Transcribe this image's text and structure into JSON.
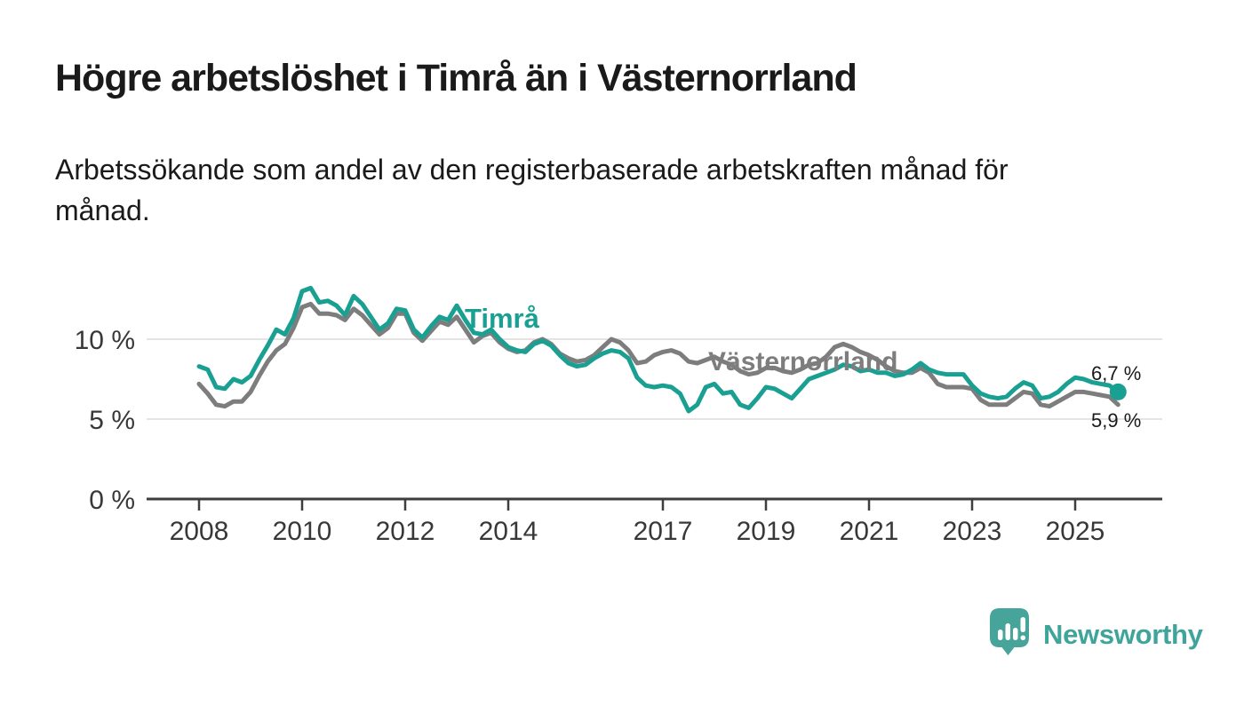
{
  "header": {
    "title": "Högre arbetslöshet i Timrå än i Västernorrland",
    "subtitle_line1": "Arbetssökande som andel av den registerbaserade arbetskraften månad för",
    "subtitle_line2": "månad."
  },
  "chart_data": {
    "type": "line",
    "title": "Högre arbetslöshet i Timrå än i Västernorrland",
    "xlabel": "",
    "ylabel": "",
    "grid": "horizontal",
    "legend_position": "inline-labels-on-lines",
    "x_range": [
      2008.0,
      2026.7
    ],
    "y_range": [
      0,
      14
    ],
    "y_gridlines": [
      5,
      10
    ],
    "y_ticks": [
      {
        "value": 0,
        "label": "0 %"
      },
      {
        "value": 5,
        "label": "5 %"
      },
      {
        "value": 10,
        "label": "10 %"
      }
    ],
    "x_ticks": [
      {
        "year": 2008,
        "label": "2008"
      },
      {
        "year": 2010,
        "label": "2010"
      },
      {
        "year": 2012,
        "label": "2012"
      },
      {
        "year": 2014,
        "label": "2014"
      },
      {
        "year": 2017,
        "label": "2017"
      },
      {
        "year": 2019,
        "label": "2019"
      },
      {
        "year": 2021,
        "label": "2021"
      },
      {
        "year": 2023,
        "label": "2023"
      },
      {
        "year": 2025,
        "label": "2025"
      }
    ],
    "series": [
      {
        "name": "Timrå",
        "color": "#1aa092",
        "end_label": "6,7 %",
        "end_value": 6.7,
        "end_marker": true,
        "start": 2008.0,
        "step_months": 2,
        "values": [
          8.3,
          8.1,
          7.0,
          6.9,
          7.5,
          7.3,
          7.7,
          8.7,
          9.6,
          10.6,
          10.3,
          11.3,
          13.0,
          13.2,
          12.3,
          12.4,
          12.1,
          11.5,
          12.7,
          12.2,
          11.4,
          10.6,
          11.0,
          11.9,
          11.8,
          10.6,
          10.1,
          10.8,
          11.4,
          11.2,
          12.1,
          11.2,
          10.4,
          10.3,
          10.6,
          10.0,
          9.5,
          9.3,
          9.2,
          9.7,
          9.9,
          9.6,
          9.0,
          8.5,
          8.3,
          8.4,
          8.8,
          9.1,
          9.3,
          9.2,
          8.8,
          7.6,
          7.1,
          7.0,
          7.1,
          7.0,
          6.6,
          5.5,
          5.9,
          7.0,
          7.2,
          6.6,
          6.7,
          5.9,
          5.7,
          6.3,
          7.0,
          6.9,
          6.6,
          6.3,
          6.9,
          7.5,
          7.7,
          7.9,
          8.1,
          8.4,
          8.3,
          8.0,
          8.1,
          7.9,
          7.9,
          7.7,
          7.8,
          8.1,
          8.5,
          8.1,
          7.9,
          7.8,
          7.8,
          7.8,
          7.1,
          6.6,
          6.4,
          6.3,
          6.4,
          6.9,
          7.3,
          7.1,
          6.3,
          6.4,
          6.7,
          7.2,
          7.6,
          7.5,
          7.3,
          7.2,
          7.1,
          6.7
        ]
      },
      {
        "name": "Västernorrland",
        "color": "#7d7d7d",
        "end_label": "5,9 %",
        "end_value": 5.9,
        "end_marker": false,
        "start": 2008.0,
        "step_months": 2,
        "values": [
          7.2,
          6.6,
          5.9,
          5.8,
          6.1,
          6.1,
          6.7,
          7.7,
          8.6,
          9.3,
          9.7,
          10.7,
          12.0,
          12.2,
          11.6,
          11.6,
          11.5,
          11.2,
          11.9,
          11.5,
          10.9,
          10.3,
          10.7,
          11.6,
          11.6,
          10.4,
          9.9,
          10.5,
          11.1,
          10.9,
          11.4,
          10.6,
          9.8,
          10.2,
          10.4,
          9.8,
          9.4,
          9.2,
          9.3,
          9.8,
          10.0,
          9.7,
          9.1,
          8.8,
          8.6,
          8.7,
          9.0,
          9.5,
          10.0,
          9.8,
          9.3,
          8.5,
          8.6,
          9.0,
          9.2,
          9.3,
          9.1,
          8.6,
          8.5,
          8.7,
          8.9,
          8.6,
          8.4,
          8.0,
          7.8,
          7.9,
          8.2,
          8.2,
          8.0,
          7.9,
          8.1,
          8.4,
          8.5,
          8.9,
          9.5,
          9.7,
          9.5,
          9.2,
          9.0,
          8.7,
          8.3,
          8.0,
          7.9,
          7.9,
          8.2,
          7.9,
          7.2,
          7.0,
          7.0,
          7.0,
          6.9,
          6.2,
          5.9,
          5.9,
          5.9,
          6.3,
          6.7,
          6.6,
          5.9,
          5.8,
          6.1,
          6.4,
          6.7,
          6.7,
          6.6,
          6.5,
          6.4,
          5.9
        ]
      }
    ]
  },
  "branding": {
    "logo_text": "Newsworthy",
    "logo_icon": "newsworthy-speech-bubble-bar-chart-icon"
  },
  "colors": {
    "timra_line": "#1aa092",
    "vasternorrland_line": "#7d7d7d",
    "logo_teal": "#47a49b",
    "gridline": "#e4e4e4",
    "axis": "#3d3d3d",
    "text": "#1a1a1a"
  }
}
